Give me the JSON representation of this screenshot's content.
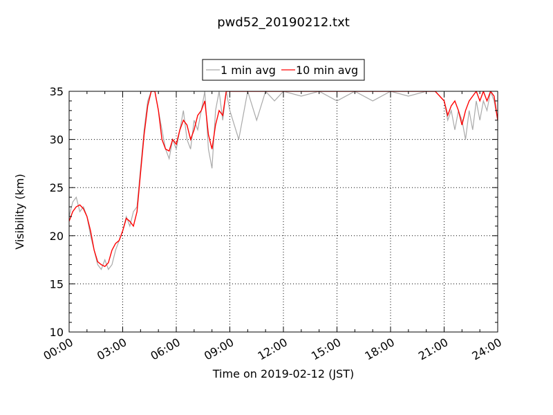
{
  "chart_data": {
    "type": "line",
    "title": "pwd52_20190212.txt",
    "xlabel": "Time on 2019-02-12 (JST)",
    "ylabel": "Visibility (km)",
    "xlim": [
      "00:00",
      "24:00"
    ],
    "ylim": [
      10,
      35
    ],
    "x_ticks": [
      "00:00",
      "03:00",
      "06:00",
      "09:00",
      "12:00",
      "15:00",
      "18:00",
      "21:00",
      "24:00"
    ],
    "y_ticks": [
      "10",
      "15",
      "20",
      "25",
      "30",
      "35"
    ],
    "grid": true,
    "legend_position": "top-center",
    "series": [
      {
        "name": "1 min avg",
        "color": "#a9a9a9",
        "x_hours": [
          0,
          0.2,
          0.4,
          0.6,
          0.8,
          1.0,
          1.2,
          1.4,
          1.6,
          1.8,
          2.0,
          2.2,
          2.4,
          2.6,
          2.8,
          3.0,
          3.2,
          3.4,
          3.6,
          3.8,
          4.0,
          4.2,
          4.4,
          4.6,
          4.8,
          5.0,
          5.2,
          5.4,
          5.6,
          5.8,
          6.0,
          6.2,
          6.4,
          6.6,
          6.8,
          7.0,
          7.2,
          7.4,
          7.6,
          7.8,
          8.0,
          8.2,
          8.4,
          8.6,
          8.8,
          9.0,
          9.5,
          10.0,
          10.5,
          11.0,
          11.5,
          12.0,
          13.0,
          14.0,
          15.0,
          16.0,
          17.0,
          18.0,
          19.0,
          20.0,
          20.5,
          21.0,
          21.2,
          21.4,
          21.6,
          21.8,
          22.0,
          22.2,
          22.4,
          22.6,
          22.8,
          23.0,
          23.2,
          23.4,
          23.6,
          23.8,
          24.0
        ],
        "values": [
          22.0,
          23.5,
          24.0,
          22.5,
          23.0,
          22.0,
          20.0,
          18.5,
          17.0,
          16.5,
          17.5,
          16.5,
          17.0,
          18.5,
          19.5,
          20.5,
          22.0,
          21.0,
          22.5,
          23.0,
          27.0,
          31.0,
          34.0,
          35.0,
          35.0,
          33.0,
          31.0,
          29.0,
          28.0,
          30.0,
          29.0,
          31.0,
          33.0,
          30.0,
          29.0,
          32.0,
          31.0,
          33.0,
          35.0,
          29.0,
          27.0,
          33.0,
          35.0,
          32.0,
          35.0,
          33.0,
          30.0,
          35.0,
          32.0,
          35.0,
          34.0,
          35.0,
          34.5,
          35.0,
          34.0,
          35.0,
          34.0,
          35.0,
          34.5,
          35.0,
          35.0,
          34.0,
          32.0,
          33.0,
          31.0,
          33.0,
          32.0,
          30.0,
          33.0,
          31.0,
          34.0,
          32.0,
          34.0,
          33.0,
          35.0,
          34.0,
          32.0
        ]
      },
      {
        "name": "10 min avg",
        "color": "#ff0000",
        "x_hours": [
          0,
          0.2,
          0.4,
          0.6,
          0.8,
          1.0,
          1.2,
          1.4,
          1.6,
          1.8,
          2.0,
          2.2,
          2.4,
          2.6,
          2.8,
          3.0,
          3.2,
          3.4,
          3.6,
          3.8,
          4.0,
          4.2,
          4.4,
          4.6,
          4.8,
          5.0,
          5.2,
          5.4,
          5.6,
          5.8,
          6.0,
          6.2,
          6.4,
          6.6,
          6.8,
          7.0,
          7.2,
          7.4,
          7.6,
          7.8,
          8.0,
          8.2,
          8.4,
          8.6,
          8.8,
          9.0,
          9.5,
          10.0,
          10.5,
          11.0,
          11.5,
          12.0,
          13.0,
          14.0,
          15.0,
          16.0,
          17.0,
          18.0,
          19.0,
          20.0,
          20.5,
          21.0,
          21.2,
          21.4,
          21.6,
          21.8,
          22.0,
          22.2,
          22.4,
          22.6,
          22.8,
          23.0,
          23.2,
          23.4,
          23.6,
          23.8,
          24.0
        ],
        "values": [
          21.5,
          22.5,
          23.0,
          23.2,
          22.8,
          22.0,
          20.5,
          18.5,
          17.3,
          17.0,
          16.8,
          17.2,
          18.5,
          19.2,
          19.5,
          20.5,
          21.8,
          21.5,
          21.0,
          22.5,
          26.5,
          30.5,
          33.5,
          35.0,
          35.0,
          33.0,
          30.0,
          29.0,
          28.8,
          30.0,
          29.5,
          31.0,
          32.0,
          31.5,
          30.0,
          31.0,
          32.5,
          33.0,
          34.0,
          30.5,
          29.0,
          31.5,
          33.0,
          32.5,
          35.0,
          35.0,
          35.0,
          35.0,
          35.0,
          35.0,
          35.0,
          35.0,
          35.0,
          35.0,
          35.0,
          35.0,
          35.0,
          35.0,
          35.0,
          35.0,
          35.0,
          34.0,
          32.5,
          33.5,
          34.0,
          33.0,
          31.5,
          33.0,
          34.0,
          34.5,
          35.0,
          34.0,
          35.0,
          34.0,
          35.0,
          34.5,
          32.0
        ]
      }
    ]
  }
}
